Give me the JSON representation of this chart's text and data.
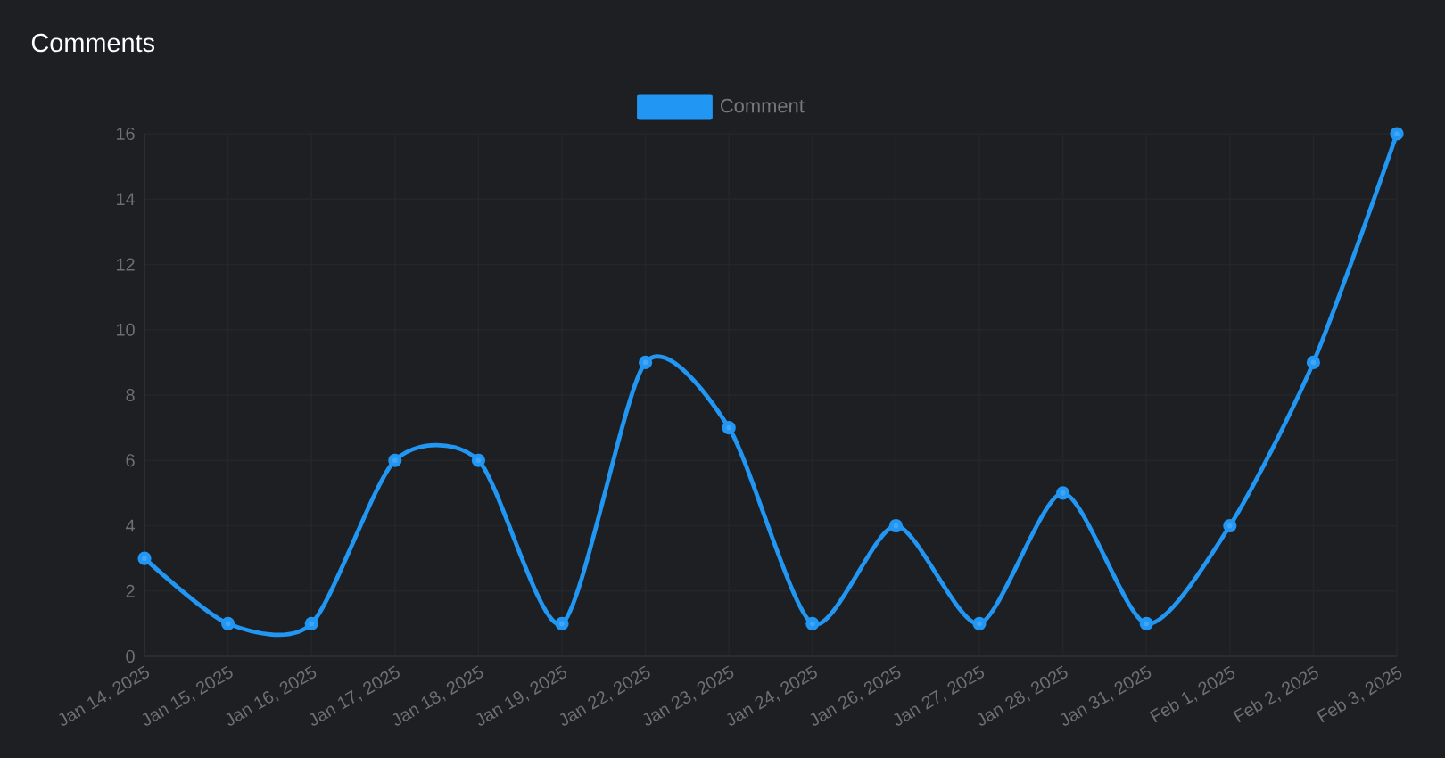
{
  "chart_data": {
    "type": "line",
    "title": "Comments",
    "categories": [
      "Jan 14, 2025",
      "Jan 15, 2025",
      "Jan 16, 2025",
      "Jan 17, 2025",
      "Jan 18, 2025",
      "Jan 19, 2025",
      "Jan 22, 2025",
      "Jan 23, 2025",
      "Jan 24, 2025",
      "Jan 26, 2025",
      "Jan 27, 2025",
      "Jan 28, 2025",
      "Jan 31, 2025",
      "Feb 1, 2025",
      "Feb 2, 2025",
      "Feb 3, 2025"
    ],
    "series": [
      {
        "name": "Comment",
        "color": "#2196f3",
        "values": [
          3,
          1,
          1,
          6,
          6,
          1,
          9,
          7,
          1,
          4,
          1,
          5,
          1,
          4,
          9,
          16
        ]
      }
    ],
    "ylim": [
      0,
      16
    ],
    "yticks": [
      0,
      2,
      4,
      6,
      8,
      10,
      12,
      14,
      16
    ],
    "grid": true,
    "legend": "top",
    "marker": "circle",
    "line_style": "solid"
  }
}
